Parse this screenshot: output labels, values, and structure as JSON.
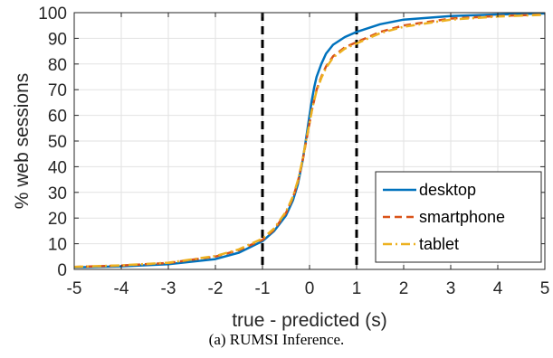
{
  "chart_data": {
    "type": "line",
    "title": "",
    "xlabel": "true - predicted (s)",
    "ylabel": "% web sessions",
    "xlim": [
      -5,
      5
    ],
    "ylim": [
      0,
      100
    ],
    "xticks": [
      -5,
      -4,
      -3,
      -2,
      -1,
      0,
      1,
      2,
      3,
      4,
      5
    ],
    "yticks": [
      0,
      10,
      20,
      30,
      40,
      50,
      60,
      70,
      80,
      90,
      100
    ],
    "grid": true,
    "legend_position": "bottom-right",
    "vertical_lines": [
      {
        "x": -1,
        "color": "#000000",
        "style": "dashed"
      },
      {
        "x": 1,
        "color": "#000000",
        "style": "dashed"
      }
    ],
    "series": [
      {
        "name": "desktop",
        "color": "#0072BD",
        "style": "solid",
        "x": [
          -5,
          -4,
          -3,
          -2,
          -1.5,
          -1,
          -0.75,
          -0.5,
          -0.35,
          -0.25,
          -0.15,
          -0.08,
          0,
          0.05,
          0.1,
          0.15,
          0.25,
          0.35,
          0.5,
          0.75,
          1,
          1.5,
          2,
          3,
          4,
          5
        ],
        "y": [
          0.8,
          1.2,
          2,
          4,
          6.5,
          11,
          15,
          21,
          27,
          33,
          42,
          50,
          60,
          66,
          71,
          75,
          80,
          84,
          87.5,
          90.5,
          92.5,
          95.5,
          97.3,
          98.7,
          99.3,
          99.7
        ]
      },
      {
        "name": "smartphone",
        "color": "#D95319",
        "style": "dashed",
        "x": [
          -5,
          -4,
          -3,
          -2,
          -1.5,
          -1,
          -0.75,
          -0.5,
          -0.35,
          -0.25,
          -0.15,
          -0.08,
          0,
          0.05,
          0.1,
          0.15,
          0.25,
          0.35,
          0.5,
          0.75,
          1,
          1.5,
          2,
          3,
          4,
          5
        ],
        "y": [
          1,
          1.5,
          2.5,
          5,
          7.5,
          11.5,
          15.5,
          22,
          28,
          34,
          42,
          49,
          57,
          62,
          66,
          70,
          75,
          79,
          83,
          86.5,
          88.5,
          92.5,
          95,
          97.7,
          98.7,
          99.3
        ]
      },
      {
        "name": "tablet",
        "color": "#EDB120",
        "style": "dashdot",
        "x": [
          -5,
          -4,
          -3,
          -2,
          -1.5,
          -1,
          -0.75,
          -0.5,
          -0.35,
          -0.25,
          -0.15,
          -0.08,
          0,
          0.05,
          0.1,
          0.15,
          0.25,
          0.35,
          0.5,
          0.75,
          1,
          1.5,
          2,
          3,
          4,
          5
        ],
        "y": [
          1,
          1.6,
          2.6,
          5.2,
          7.8,
          12,
          16,
          22.5,
          28.5,
          34.5,
          42.5,
          49.5,
          57,
          62,
          66,
          69.5,
          74.5,
          78.5,
          82.5,
          86,
          88,
          92,
          94.5,
          97.3,
          98.5,
          99.2
        ]
      }
    ]
  },
  "caption": "(a) RUMSI Inference."
}
